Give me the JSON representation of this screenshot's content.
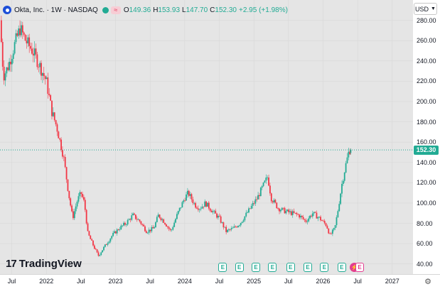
{
  "legend": {
    "symbol": "Okta, Inc. · 1W · NASDAQ",
    "wave_icon": "≈",
    "o_label": "O",
    "o_value": "149.36",
    "h_label": "H",
    "h_value": "153.93",
    "l_label": "L",
    "l_value": "147.70",
    "c_label": "C",
    "c_value": "152.30",
    "change": "+2.95 (+1.98%)"
  },
  "currency": "USD",
  "last_price": "152.30",
  "logo_text": "TradingView",
  "event_label": "E",
  "colors": {
    "up": "#22ab94",
    "down": "#f23645",
    "grid": "#d8d8d8",
    "background": "#e5e5e5"
  },
  "chart_data": {
    "type": "candlestick",
    "title": "Okta, Inc. · 1W · NASDAQ",
    "y_ticks": [
      40,
      60,
      80,
      100,
      120,
      140,
      160,
      180,
      200,
      220,
      240,
      260,
      280
    ],
    "ylim": [
      30,
      300
    ],
    "x_ticks": [
      "Jul",
      "2022",
      "Jul",
      "2023",
      "Jul",
      "2024",
      "Jul",
      "2025",
      "Jul",
      "2026",
      "Jul",
      "2027"
    ],
    "x_tick_positions": [
      2021.5,
      2022.0,
      2022.5,
      2023.0,
      2023.5,
      2024.0,
      2024.5,
      2025.0,
      2025.5,
      2026.0,
      2026.5,
      2027.0
    ],
    "xlim": [
      2021.33,
      2027.3
    ],
    "trend": [
      [
        2021.33,
        280
      ],
      [
        2021.38,
        225
      ],
      [
        2021.45,
        235
      ],
      [
        2021.55,
        258
      ],
      [
        2021.62,
        272
      ],
      [
        2021.7,
        260
      ],
      [
        2021.8,
        250
      ],
      [
        2021.9,
        236
      ],
      [
        2022.0,
        220
      ],
      [
        2022.08,
        190
      ],
      [
        2022.15,
        175
      ],
      [
        2022.25,
        145
      ],
      [
        2022.32,
        110
      ],
      [
        2022.38,
        85
      ],
      [
        2022.45,
        103
      ],
      [
        2022.5,
        110
      ],
      [
        2022.55,
        100
      ],
      [
        2022.6,
        70
      ],
      [
        2022.68,
        58
      ],
      [
        2022.75,
        48
      ],
      [
        2022.85,
        58
      ],
      [
        2022.95,
        68
      ],
      [
        2023.05,
        75
      ],
      [
        2023.15,
        80
      ],
      [
        2023.25,
        88
      ],
      [
        2023.35,
        82
      ],
      [
        2023.45,
        72
      ],
      [
        2023.55,
        75
      ],
      [
        2023.62,
        88
      ],
      [
        2023.7,
        82
      ],
      [
        2023.8,
        72
      ],
      [
        2023.9,
        90
      ],
      [
        2024.0,
        105
      ],
      [
        2024.05,
        110
      ],
      [
        2024.15,
        98
      ],
      [
        2024.22,
        95
      ],
      [
        2024.3,
        100
      ],
      [
        2024.4,
        92
      ],
      [
        2024.5,
        85
      ],
      [
        2024.6,
        72
      ],
      [
        2024.7,
        75
      ],
      [
        2024.8,
        80
      ],
      [
        2024.9,
        90
      ],
      [
        2025.0,
        100
      ],
      [
        2025.05,
        105
      ],
      [
        2025.12,
        115
      ],
      [
        2025.2,
        126
      ],
      [
        2025.25,
        105
      ],
      [
        2025.35,
        95
      ],
      [
        2025.45,
        92
      ],
      [
        2025.55,
        90
      ],
      [
        2025.65,
        88
      ],
      [
        2025.75,
        82
      ],
      [
        2025.85,
        90
      ],
      [
        2025.95,
        85
      ],
      [
        2026.05,
        78
      ],
      [
        2026.1,
        68
      ],
      [
        2026.17,
        75
      ],
      [
        2026.22,
        95
      ],
      [
        2026.27,
        118
      ],
      [
        2026.32,
        135
      ],
      [
        2026.37,
        150
      ],
      [
        2026.39,
        152.3
      ]
    ],
    "last": {
      "open": 149.36,
      "high": 153.93,
      "low": 147.7,
      "close": 152.3
    }
  },
  "events": [
    2024.55,
    2024.79,
    2025.03,
    2025.27,
    2025.53,
    2025.78,
    2026.02,
    2026.27
  ],
  "split_event": 2026.45,
  "last_event": 2026.53
}
